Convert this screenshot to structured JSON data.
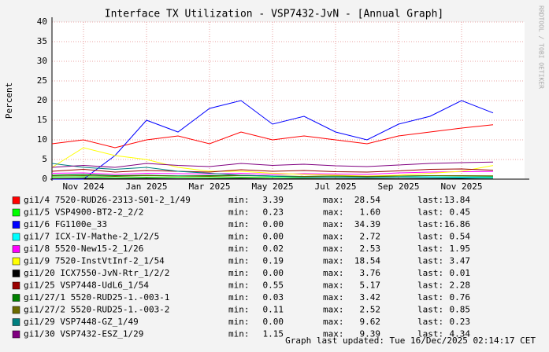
{
  "chart_data": {
    "type": "line",
    "title": "Interface TX Utilization - VSP7432-JvN - [Annual Graph]",
    "y_label": "Percent",
    "watermark": "RRDTOOL / TOBI OETIKER",
    "footer": "Graph last updated: Tue 16/Dec/2025 02:14:17 CET",
    "grid": true,
    "x": [
      "2024-10",
      "2024-11",
      "2024-12",
      "2025-01",
      "2025-02",
      "2025-03",
      "2025-04",
      "2025-05",
      "2025-06",
      "2025-07",
      "2025-08",
      "2025-09",
      "2025-10",
      "2025-11",
      "2025-12"
    ],
    "xlim": [
      "2024-10",
      "2026-01"
    ],
    "xticks": [
      {
        "value": "2024-11",
        "label": "Nov 2024"
      },
      {
        "value": "2025-01",
        "label": "Jan 2025"
      },
      {
        "value": "2025-03",
        "label": "Mar 2025"
      },
      {
        "value": "2025-05",
        "label": "May 2025"
      },
      {
        "value": "2025-07",
        "label": "Jul 2025"
      },
      {
        "value": "2025-09",
        "label": "Sep 2025"
      },
      {
        "value": "2025-11",
        "label": "Nov 2025"
      }
    ],
    "ylim": [
      0,
      40
    ],
    "yticks": [
      0,
      5,
      10,
      15,
      20,
      25,
      30,
      35,
      40
    ],
    "stat_labels": {
      "min": "min:",
      "max": "max:",
      "last": "last:"
    },
    "series": [
      {
        "name": "gi1/4 7520-RUD26-2313-S01-2_1/49",
        "color": "#ff0000",
        "min": "3.39",
        "max": "28.54",
        "last": "13.84",
        "values": [
          9,
          10,
          8,
          10,
          11,
          9,
          12,
          10,
          11,
          10,
          9,
          11,
          12,
          13,
          13.84
        ]
      },
      {
        "name": "gi1/5 VSP4900-BT2-2_2/2",
        "color": "#00ff00",
        "min": "0.23",
        "max": "1.60",
        "last": "0.45",
        "values": [
          0.5,
          0.6,
          0.4,
          0.5,
          0.5,
          0.4,
          0.5,
          0.5,
          0.4,
          0.5,
          0.4,
          0.5,
          0.5,
          0.5,
          0.45
        ]
      },
      {
        "name": "gi1/6 FG1100e_33",
        "color": "#0000ff",
        "min": "0.00",
        "max": "34.39",
        "last": "16.86",
        "values": [
          0,
          0,
          6,
          15,
          12,
          18,
          20,
          14,
          16,
          12,
          10,
          14,
          16,
          20,
          16.86
        ]
      },
      {
        "name": "gi1/7 ICX-IV-Mathe-2_1/2/5",
        "color": "#00ffff",
        "min": "0.00",
        "max": "2.72",
        "last": "0.54",
        "values": [
          1,
          1.2,
          0.8,
          1,
          0.9,
          0.8,
          1,
          0.7,
          0.6,
          0.7,
          0.5,
          0.6,
          0.6,
          0.5,
          0.54
        ]
      },
      {
        "name": "gi1/8 5520-New15-2_1/26",
        "color": "#ff00ff",
        "min": "0.02",
        "max": "2.53",
        "last": "1.95",
        "values": [
          1.5,
          1.6,
          1.2,
          1.5,
          1.4,
          1.3,
          1.5,
          1.2,
          1.4,
          1.3,
          1.2,
          1.6,
          1.8,
          1.9,
          1.95
        ]
      },
      {
        "name": "gi1/9 7520-InstVtInf-2_1/54",
        "color": "#ffff00",
        "min": "0.19",
        "max": "18.54",
        "last": "3.47",
        "values": [
          3,
          8,
          6,
          5,
          3,
          2,
          2,
          1.5,
          1.2,
          1,
          0.8,
          1,
          1.5,
          2,
          3.47
        ]
      },
      {
        "name": "gi1/20 ICX7550-JvN-Rtr_1/2/2",
        "color": "#000000",
        "min": "0.00",
        "max": "3.76",
        "last": "0.01",
        "values": [
          0.1,
          0.2,
          0.1,
          0.2,
          0.1,
          0.1,
          0.2,
          0.1,
          0.1,
          0.1,
          0.1,
          0.1,
          0.1,
          0.1,
          0.01
        ]
      },
      {
        "name": "gi1/25 VSP7448-UdL6_1/54",
        "color": "#990000",
        "min": "0.55",
        "max": "5.17",
        "last": "2.28",
        "values": [
          2,
          2.5,
          1.8,
          2.2,
          2,
          1.8,
          2.4,
          2,
          2.2,
          1.9,
          1.8,
          2.1,
          2.5,
          2.6,
          2.28
        ]
      },
      {
        "name": "gi1/27/1 5520-RUD25-1.-003-1",
        "color": "#008000",
        "min": "0.03",
        "max": "3.42",
        "last": "0.76",
        "values": [
          1,
          1.2,
          0.9,
          1,
          0.8,
          0.9,
          1,
          0.8,
          0.7,
          0.8,
          0.6,
          0.8,
          0.9,
          0.8,
          0.76
        ]
      },
      {
        "name": "gi1/27/2 5520-RUD25-1.-003-2",
        "color": "#6b6b00",
        "min": "0.11",
        "max": "2.52",
        "last": "0.85",
        "values": [
          0.8,
          0.9,
          0.7,
          0.9,
          0.8,
          0.7,
          0.9,
          0.8,
          0.7,
          0.8,
          0.7,
          0.8,
          0.9,
          0.9,
          0.85
        ]
      },
      {
        "name": "gi1/29 VSP7448-GZ_1/49",
        "color": "#008080",
        "min": "0.00",
        "max": "9.62",
        "last": "0.23",
        "values": [
          4,
          3,
          2.5,
          3,
          2,
          1.5,
          1,
          0.8,
          0.5,
          0.5,
          0.4,
          0.5,
          0.4,
          0.3,
          0.23
        ]
      },
      {
        "name": "gi1/30 VSP7432-ESZ_1/29",
        "color": "#800080",
        "min": "1.15",
        "max": "9.39",
        "last": "4.34",
        "values": [
          3,
          3.5,
          3,
          4,
          3.5,
          3.2,
          4,
          3.5,
          3.8,
          3.4,
          3.2,
          3.6,
          4,
          4.2,
          4.34
        ]
      }
    ]
  }
}
